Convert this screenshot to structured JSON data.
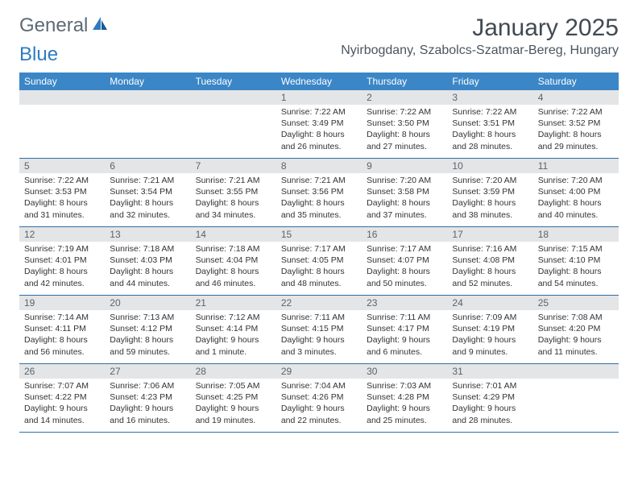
{
  "brand": {
    "part1": "General",
    "part2": "Blue"
  },
  "title": "January 2025",
  "location": "Nyirbogdany, Szabolcs-Szatmar-Bereg, Hungary",
  "colors": {
    "header_bg": "#3b86c6",
    "daynum_bg": "#e4e5e6",
    "rule": "#2f6ea8",
    "text": "#333333",
    "title_text": "#404a52"
  },
  "weekdays": [
    "Sunday",
    "Monday",
    "Tuesday",
    "Wednesday",
    "Thursday",
    "Friday",
    "Saturday"
  ],
  "weeks": [
    [
      {
        "n": "",
        "lines": []
      },
      {
        "n": "",
        "lines": []
      },
      {
        "n": "",
        "lines": []
      },
      {
        "n": "1",
        "lines": [
          "Sunrise: 7:22 AM",
          "Sunset: 3:49 PM",
          "Daylight: 8 hours",
          "and 26 minutes."
        ]
      },
      {
        "n": "2",
        "lines": [
          "Sunrise: 7:22 AM",
          "Sunset: 3:50 PM",
          "Daylight: 8 hours",
          "and 27 minutes."
        ]
      },
      {
        "n": "3",
        "lines": [
          "Sunrise: 7:22 AM",
          "Sunset: 3:51 PM",
          "Daylight: 8 hours",
          "and 28 minutes."
        ]
      },
      {
        "n": "4",
        "lines": [
          "Sunrise: 7:22 AM",
          "Sunset: 3:52 PM",
          "Daylight: 8 hours",
          "and 29 minutes."
        ]
      }
    ],
    [
      {
        "n": "5",
        "lines": [
          "Sunrise: 7:22 AM",
          "Sunset: 3:53 PM",
          "Daylight: 8 hours",
          "and 31 minutes."
        ]
      },
      {
        "n": "6",
        "lines": [
          "Sunrise: 7:21 AM",
          "Sunset: 3:54 PM",
          "Daylight: 8 hours",
          "and 32 minutes."
        ]
      },
      {
        "n": "7",
        "lines": [
          "Sunrise: 7:21 AM",
          "Sunset: 3:55 PM",
          "Daylight: 8 hours",
          "and 34 minutes."
        ]
      },
      {
        "n": "8",
        "lines": [
          "Sunrise: 7:21 AM",
          "Sunset: 3:56 PM",
          "Daylight: 8 hours",
          "and 35 minutes."
        ]
      },
      {
        "n": "9",
        "lines": [
          "Sunrise: 7:20 AM",
          "Sunset: 3:58 PM",
          "Daylight: 8 hours",
          "and 37 minutes."
        ]
      },
      {
        "n": "10",
        "lines": [
          "Sunrise: 7:20 AM",
          "Sunset: 3:59 PM",
          "Daylight: 8 hours",
          "and 38 minutes."
        ]
      },
      {
        "n": "11",
        "lines": [
          "Sunrise: 7:20 AM",
          "Sunset: 4:00 PM",
          "Daylight: 8 hours",
          "and 40 minutes."
        ]
      }
    ],
    [
      {
        "n": "12",
        "lines": [
          "Sunrise: 7:19 AM",
          "Sunset: 4:01 PM",
          "Daylight: 8 hours",
          "and 42 minutes."
        ]
      },
      {
        "n": "13",
        "lines": [
          "Sunrise: 7:18 AM",
          "Sunset: 4:03 PM",
          "Daylight: 8 hours",
          "and 44 minutes."
        ]
      },
      {
        "n": "14",
        "lines": [
          "Sunrise: 7:18 AM",
          "Sunset: 4:04 PM",
          "Daylight: 8 hours",
          "and 46 minutes."
        ]
      },
      {
        "n": "15",
        "lines": [
          "Sunrise: 7:17 AM",
          "Sunset: 4:05 PM",
          "Daylight: 8 hours",
          "and 48 minutes."
        ]
      },
      {
        "n": "16",
        "lines": [
          "Sunrise: 7:17 AM",
          "Sunset: 4:07 PM",
          "Daylight: 8 hours",
          "and 50 minutes."
        ]
      },
      {
        "n": "17",
        "lines": [
          "Sunrise: 7:16 AM",
          "Sunset: 4:08 PM",
          "Daylight: 8 hours",
          "and 52 minutes."
        ]
      },
      {
        "n": "18",
        "lines": [
          "Sunrise: 7:15 AM",
          "Sunset: 4:10 PM",
          "Daylight: 8 hours",
          "and 54 minutes."
        ]
      }
    ],
    [
      {
        "n": "19",
        "lines": [
          "Sunrise: 7:14 AM",
          "Sunset: 4:11 PM",
          "Daylight: 8 hours",
          "and 56 minutes."
        ]
      },
      {
        "n": "20",
        "lines": [
          "Sunrise: 7:13 AM",
          "Sunset: 4:12 PM",
          "Daylight: 8 hours",
          "and 59 minutes."
        ]
      },
      {
        "n": "21",
        "lines": [
          "Sunrise: 7:12 AM",
          "Sunset: 4:14 PM",
          "Daylight: 9 hours",
          "and 1 minute."
        ]
      },
      {
        "n": "22",
        "lines": [
          "Sunrise: 7:11 AM",
          "Sunset: 4:15 PM",
          "Daylight: 9 hours",
          "and 3 minutes."
        ]
      },
      {
        "n": "23",
        "lines": [
          "Sunrise: 7:11 AM",
          "Sunset: 4:17 PM",
          "Daylight: 9 hours",
          "and 6 minutes."
        ]
      },
      {
        "n": "24",
        "lines": [
          "Sunrise: 7:09 AM",
          "Sunset: 4:19 PM",
          "Daylight: 9 hours",
          "and 9 minutes."
        ]
      },
      {
        "n": "25",
        "lines": [
          "Sunrise: 7:08 AM",
          "Sunset: 4:20 PM",
          "Daylight: 9 hours",
          "and 11 minutes."
        ]
      }
    ],
    [
      {
        "n": "26",
        "lines": [
          "Sunrise: 7:07 AM",
          "Sunset: 4:22 PM",
          "Daylight: 9 hours",
          "and 14 minutes."
        ]
      },
      {
        "n": "27",
        "lines": [
          "Sunrise: 7:06 AM",
          "Sunset: 4:23 PM",
          "Daylight: 9 hours",
          "and 16 minutes."
        ]
      },
      {
        "n": "28",
        "lines": [
          "Sunrise: 7:05 AM",
          "Sunset: 4:25 PM",
          "Daylight: 9 hours",
          "and 19 minutes."
        ]
      },
      {
        "n": "29",
        "lines": [
          "Sunrise: 7:04 AM",
          "Sunset: 4:26 PM",
          "Daylight: 9 hours",
          "and 22 minutes."
        ]
      },
      {
        "n": "30",
        "lines": [
          "Sunrise: 7:03 AM",
          "Sunset: 4:28 PM",
          "Daylight: 9 hours",
          "and 25 minutes."
        ]
      },
      {
        "n": "31",
        "lines": [
          "Sunrise: 7:01 AM",
          "Sunset: 4:29 PM",
          "Daylight: 9 hours",
          "and 28 minutes."
        ]
      },
      {
        "n": "",
        "lines": []
      }
    ]
  ]
}
